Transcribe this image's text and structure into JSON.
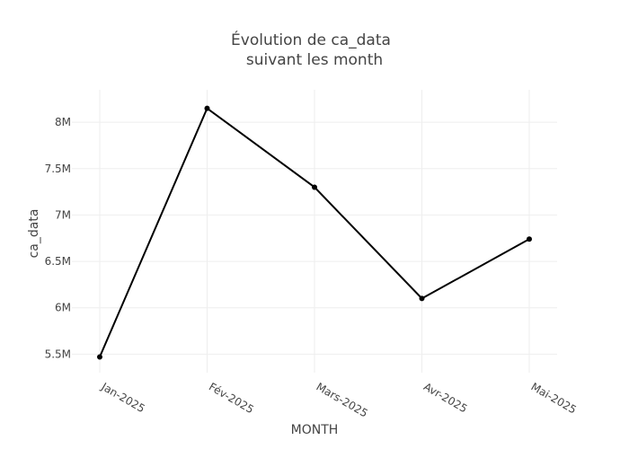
{
  "chart_data": {
    "type": "line",
    "title_line1": "Évolution de ca_data",
    "title_line2": "suivant les month",
    "xlabel": "MONTH",
    "ylabel": "ca_data",
    "categories": [
      "Jan-2025",
      "Fév-2025",
      "Mars-2025",
      "Avr-2025",
      "Mai-2025"
    ],
    "values": [
      5470000,
      8150000,
      7300000,
      6100000,
      6740000
    ],
    "ylim": [
      5300000,
      8350000
    ],
    "yticks": [
      5500000,
      6000000,
      6500000,
      7000000,
      7500000,
      8000000
    ],
    "ytick_labels": [
      "5.5M",
      "6M",
      "6.5M",
      "7M",
      "7.5M",
      "8M"
    ],
    "grid": true,
    "line_color": "#000000",
    "grid_color": "#eeeeee"
  }
}
